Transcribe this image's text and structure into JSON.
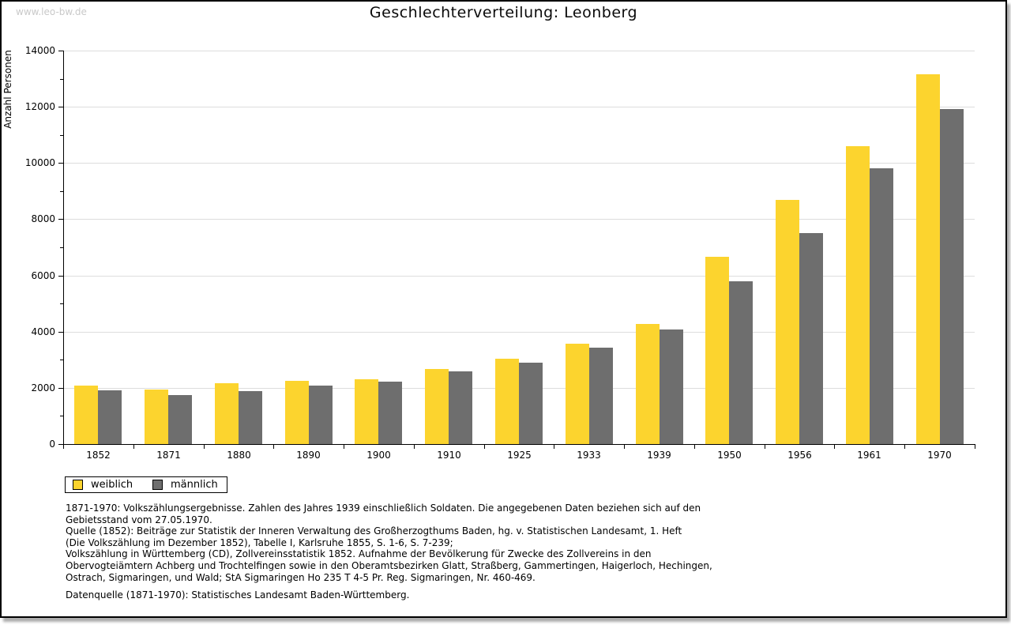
{
  "watermark": "www.leo-bw.de",
  "title": "Geschlechterverteilung: Leonberg",
  "chart_data": {
    "type": "bar",
    "title": "Geschlechterverteilung: Leonberg",
    "xlabel": "",
    "ylabel": "Anzahl Personen",
    "categories": [
      "1852",
      "1871",
      "1880",
      "1890",
      "1900",
      "1910",
      "1925",
      "1933",
      "1939",
      "1950",
      "1956",
      "1961",
      "1970"
    ],
    "series": [
      {
        "name": "weiblich",
        "color": "#fcd42e",
        "values": [
          2080,
          1950,
          2160,
          2250,
          2300,
          2670,
          3050,
          3580,
          4270,
          6660,
          8690,
          10610,
          13150
        ]
      },
      {
        "name": "männlich",
        "color": "#6e6e6e",
        "values": [
          1910,
          1750,
          1880,
          2080,
          2220,
          2580,
          2890,
          3420,
          4080,
          5790,
          7500,
          9800,
          11910
        ]
      }
    ],
    "ylim": [
      0,
      14000
    ],
    "ytick_step": 2000,
    "yticks": [
      0,
      2000,
      4000,
      6000,
      8000,
      10000,
      12000,
      14000
    ],
    "minor_ytick_step": 1000,
    "grid": "horizontal",
    "gridline_color": "#dddddd",
    "legend_position": "bottom-left"
  },
  "footnotes": {
    "lines": [
      "1871-1970: Volkszählungsergebnisse. Zahlen des Jahres 1939 einschließlich Soldaten. Die angegebenen Daten beziehen sich auf den",
      "Gebietsstand vom 27.05.1970.",
      "Quelle (1852): Beiträge zur Statistik der Inneren Verwaltung des Großherzogthums Baden, hg. v. Statistischen Landesamt, 1. Heft",
      "(Die Volkszählung im Dezember 1852), Tabelle I, Karlsruhe 1855, S. 1-6, S. 7-239;",
      "Volkszählung in Württemberg (CD), Zollvereinsstatistik 1852. Aufnahme der Bevölkerung für Zwecke des Zollvereins in den",
      "Obervogteiämtern Achberg und Trochtelfingen sowie in den Oberamtsbezirken Glatt, Straßberg, Gammertingen, Haigerloch, Hechingen,",
      "Ostrach, Sigmaringen, und Wald; StA Sigmaringen Ho 235 T 4-5 Pr. Reg. Sigmaringen, Nr. 460-469."
    ],
    "datasource": "Datenquelle (1871-1970): Statistisches Landesamt Baden-Württemberg."
  }
}
